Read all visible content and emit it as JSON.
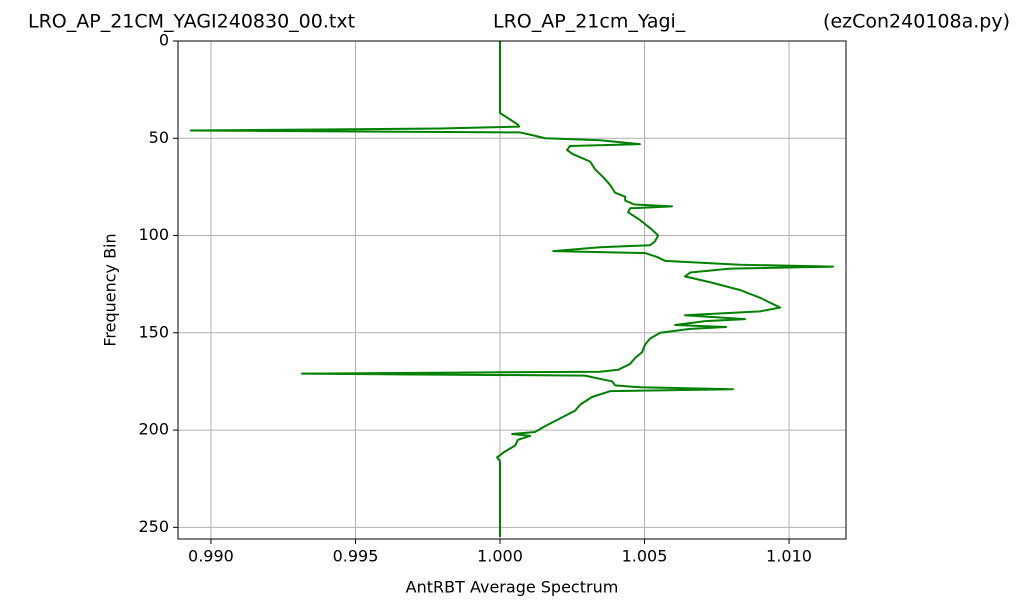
{
  "chart_data": {
    "type": "line",
    "titles": [
      "LRO_AP_21CM_YAGI240830_00.txt",
      "LRO_AP_21cm_Yagi_",
      "(ezCon240108a.py)"
    ],
    "xlabel": "AntRBT Average Spectrum",
    "ylabel": "Frequency Bin",
    "color": "#008000",
    "grid": true,
    "y_inverted": true,
    "xlim": [
      0.98886,
      1.01197
    ],
    "ylim": [
      0,
      256
    ],
    "xticks": [
      {
        "value": 0.99,
        "label": "0.990"
      },
      0.995,
      {
        "value": 1.0,
        "label": "1.000"
      },
      1.005,
      {
        "value": 1.01,
        "label": "1.010"
      }
    ],
    "yticks": [
      0,
      50,
      100,
      150,
      200,
      250
    ],
    "bins": [
      0,
      37,
      43,
      44,
      45,
      46,
      47,
      48,
      50,
      51,
      53,
      54,
      56,
      58,
      62,
      66,
      70,
      74,
      78,
      80,
      82,
      84,
      85,
      86,
      88,
      92,
      97,
      100,
      103,
      105,
      106,
      108,
      109,
      111,
      113,
      115,
      116,
      117,
      119,
      121,
      124,
      128,
      132,
      135,
      137,
      139,
      141,
      143,
      144,
      146,
      147,
      148,
      150,
      153,
      156,
      160,
      163,
      166,
      169,
      170,
      171,
      172,
      175,
      177,
      178,
      179,
      180,
      183,
      187,
      190,
      194,
      198,
      201,
      202,
      203,
      205,
      208,
      211,
      214,
      216,
      255
    ],
    "values": [
      1.0,
      1.0,
      1.00062,
      1.00066,
      0.99792,
      0.9893,
      1.00069,
      1.001,
      1.00156,
      1.00346,
      1.00484,
      1.00242,
      1.00232,
      1.0025,
      1.00312,
      1.00329,
      1.00357,
      1.00381,
      1.00398,
      1.00433,
      1.00433,
      1.00464,
      1.00595,
      1.0045,
      1.00443,
      1.00484,
      1.00526,
      1.00547,
      1.00536,
      1.00519,
      1.00346,
      1.00184,
      1.00502,
      1.00543,
      1.00571,
      1.0083,
      1.01152,
      1.00796,
      1.00658,
      1.0064,
      1.00727,
      1.0083,
      1.009,
      1.00941,
      1.00969,
      1.009,
      1.0064,
      1.00848,
      1.0071,
      1.00606,
      1.00782,
      1.00658,
      1.00554,
      1.00519,
      1.00502,
      1.00491,
      1.00467,
      1.0045,
      1.00409,
      1.00346,
      0.99315,
      1.00294,
      1.00388,
      1.00398,
      1.00484,
      1.00806,
      1.00381,
      1.00318,
      1.00277,
      1.0026,
      1.00208,
      1.00156,
      1.00121,
      1.00042,
      1.00104,
      1.00062,
      1.00052,
      1.00017,
      0.9999,
      1.0,
      1.0
    ]
  }
}
